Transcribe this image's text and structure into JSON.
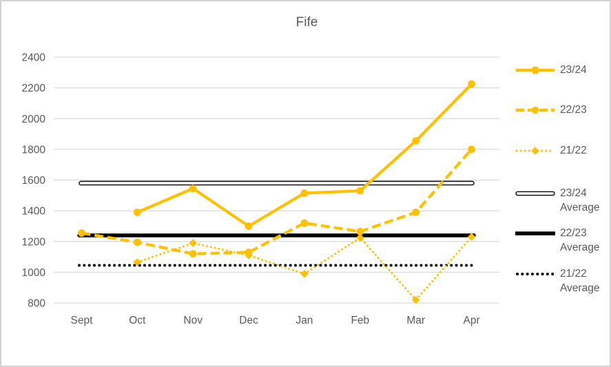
{
  "chart_data": {
    "type": "line",
    "title": "Fife",
    "categories": [
      "Sept",
      "Oct",
      "Nov",
      "Dec",
      "Jan",
      "Feb",
      "Mar",
      "Apr"
    ],
    "y_axis": {
      "min": 800,
      "max": 2400,
      "step": 200,
      "ticks": [
        800,
        1000,
        1200,
        1400,
        1600,
        1800,
        2000,
        2200,
        2400
      ]
    },
    "grid": true,
    "legend_position": "right",
    "series": [
      {
        "name": "23/24",
        "type": "line",
        "line_style": "solid",
        "color": "#FFC000",
        "marker": "circle",
        "values": [
          null,
          1390,
          1545,
          1300,
          1515,
          1530,
          1855,
          2225
        ]
      },
      {
        "name": "22/23",
        "type": "line",
        "line_style": "dashed",
        "color": "#FFC000",
        "marker": "circle",
        "values": [
          1255,
          1195,
          1120,
          1130,
          1320,
          1265,
          1390,
          1800
        ]
      },
      {
        "name": "21/22",
        "type": "line",
        "line_style": "dotted",
        "color": "#FFC000",
        "marker": "diamond",
        "values": [
          null,
          1065,
          1190,
          1110,
          990,
          1225,
          820,
          1230
        ]
      },
      {
        "name": "23/24 Average",
        "type": "constant-line",
        "line_style": "double",
        "color": "#000000",
        "marker": "none",
        "value": 1580
      },
      {
        "name": "22/23 Average",
        "type": "constant-line",
        "line_style": "thick",
        "color": "#000000",
        "marker": "none",
        "value": 1240
      },
      {
        "name": "21/22 Average",
        "type": "constant-line",
        "line_style": "dotted-bold",
        "color": "#000000",
        "marker": "none",
        "value": 1045
      }
    ],
    "colors": {
      "series_yellow": "#FFC000",
      "average_black": "#000000",
      "gridline": "#D9D9D9",
      "text": "#595959",
      "border": "#D2D2D2",
      "background": "#FFFFFF"
    }
  }
}
